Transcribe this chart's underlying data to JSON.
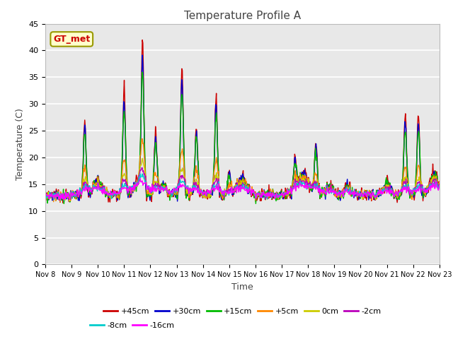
{
  "title": "Temperature Profile A",
  "xlabel": "Time",
  "ylabel": "Temperature (C)",
  "ylim": [
    0,
    45
  ],
  "xlim": [
    0,
    15
  ],
  "plot_bg": "#e8e8e8",
  "annotation_label": "GT_met",
  "annotation_box_color": "#ffffcc",
  "annotation_box_edge": "#999900",
  "annotation_text_color": "#cc0000",
  "x_tick_labels": [
    "Nov 8",
    "Nov 9",
    "Nov 10",
    "Nov 11",
    "Nov 12",
    "Nov 13",
    "Nov 14",
    "Nov 15",
    "Nov 16",
    "Nov 17",
    "Nov 18",
    "Nov 19",
    "Nov 20",
    "Nov 21",
    "Nov 22",
    "Nov 23"
  ],
  "series_labels": [
    "+45cm",
    "+30cm",
    "+15cm",
    "+5cm",
    "0cm",
    "-2cm",
    "-8cm",
    "-16cm"
  ],
  "series_colors": [
    "#cc0000",
    "#0000cc",
    "#00bb00",
    "#ff8800",
    "#cccc00",
    "#bb00bb",
    "#00cccc",
    "#ff00ff"
  ]
}
